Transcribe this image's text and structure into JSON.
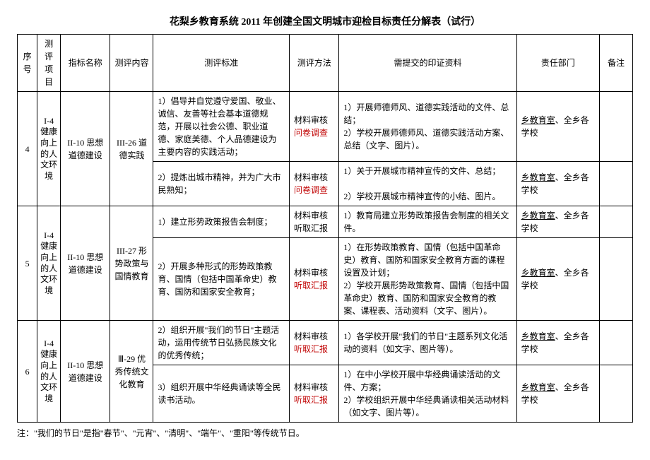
{
  "title": "花梨乡教育系统 2011 年创建全国文明城市迎检目标责任分解表（试行）",
  "headers": {
    "seq": "序号",
    "proj": "测评项目",
    "ind": "指标名称",
    "cont": "测评内容",
    "std": "测评标准",
    "meth": "测评方法",
    "mat": "需提交的印证资料",
    "dept": "责任部门",
    "note": "备注"
  },
  "proj_label": "I-4 健康向上的人文环境",
  "ind_label": "II-10 思想道德建设",
  "cont_26": "III-26 道德实践",
  "cont_27": "III-27 形势政策与国情教育",
  "cont_29": "Ⅲ-29 优秀传统文化教育",
  "std_4a": "1）倡导并自觉遵守爱国、敬业、诚信、友善等社会基本道德规范，开展以社会公德、职业道德、家庭美德、个人品德建设为主要内容的实践活动；",
  "std_4b": "2）提炼出城市精神，并为广大市民熟知；",
  "std_5a": "1）建立形势政策报告会制度；",
  "std_5b": "2）开展多种形式的形势政策教育、国情（包括中国革命史）教育、国防和国家安全教育；",
  "std_6a": "2）组织开展\"我们的节日\"主题活动，运用传统节日弘扬民族文化的优秀传统；",
  "std_6b": "3）组织开展中华经典诵读等全民读书活动。",
  "meth_audit": "材料审核",
  "meth_survey": "问卷调查",
  "meth_report": "听取汇报",
  "mat_4a": "1）开展师德师风、道德实践活动的文件、总结；\n2）学校开展师德师风、道德实践活动方案、总结（文字、图片）。",
  "mat_4b": "1）关于开展城市精神宣传的文件、总结；\n\n2）学校开展城市精神宣传的小结、图片。",
  "mat_5a": "1）教育局建立形势政策报告会制度的相关文件。",
  "mat_5b": "1）在形势政策教育、国情（包括中国革命史）教育、国防和国家安全教育方面的课程设置及计划；\n2）学校开展形势政策教育、国情（包括中国革命史）教育、国防和国家安全教育的教案、课程表、活动资料（文字、图片）。",
  "mat_6a": "1）各学校开展\"我们的节日\"主题系列文化活动的资料（如文字、图片等）。",
  "mat_6b": "1）在中小学校开展中华经典诵读活动的文件、方案；\n2）学校组织开展中华经典诵读相关活动材料（如文字、图片等）。",
  "dept_prefix": "乡教育室",
  "dept_suffix": "、全乡各学校",
  "seq_4": "4",
  "seq_5": "5",
  "seq_6": "6",
  "footnote": "注：\"我们的节日\"是指\"春节\"、\"元宵\"、\"清明\"、\"端午\"、\"重阳\"等传统节日。",
  "colors": {
    "red": "#c00000",
    "text": "#000000",
    "border": "#000000",
    "bg": "#ffffff"
  }
}
